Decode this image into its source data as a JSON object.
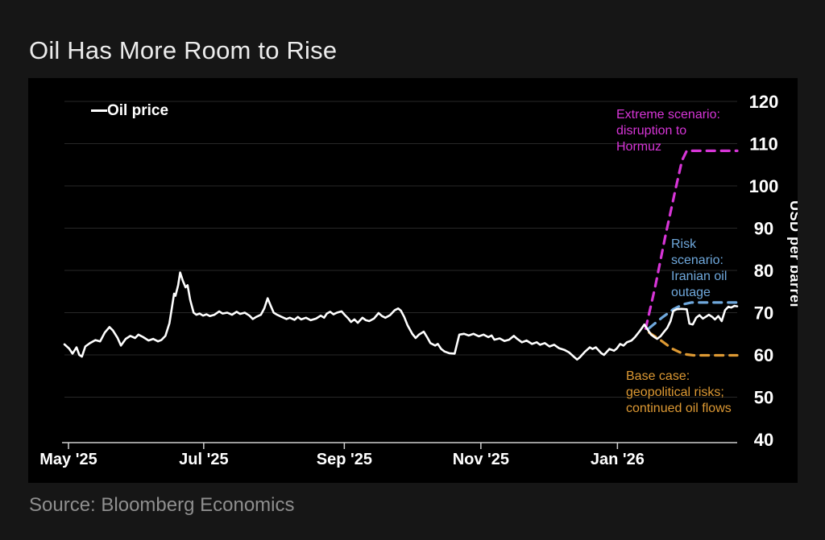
{
  "title": "Oil Has More Room to Rise",
  "source": "Source: Bloomberg Economics",
  "legend": {
    "label": "Oil price",
    "swatch_color": "#ffffff"
  },
  "annotations": {
    "extreme": {
      "text": "Extreme scenario:\ndisruption to\nHormuz",
      "color": "#d735d7"
    },
    "risk": {
      "text": "Risk\nscenario:\nIranian oil\noutage",
      "color": "#6fa8dc"
    },
    "base": {
      "text": "Base case:\ngeopolitical risks;\ncontinued oil flows",
      "color": "#dd9933"
    }
  },
  "chart_data": {
    "type": "line",
    "title": "Oil Has More Room to Rise",
    "xlabel": "",
    "ylabel": "USD per barrel",
    "ylim": [
      40,
      120
    ],
    "yticks": [
      40,
      50,
      60,
      70,
      80,
      90,
      100,
      110,
      120
    ],
    "grid": "horizontal faint, dark gray",
    "legend_position": "top-left",
    "xticks": [
      {
        "label": "May '25",
        "t": 0.006
      },
      {
        "label": "Jul '25",
        "t": 0.207
      },
      {
        "label": "Sep '25",
        "t": 0.416
      },
      {
        "label": "Nov '25",
        "t": 0.619
      },
      {
        "label": "Jan '26",
        "t": 0.822
      }
    ],
    "series": [
      {
        "name": "Oil price",
        "color": "#ffffff",
        "points": [
          [
            0.0,
            62.5
          ],
          [
            0.007,
            61.5
          ],
          [
            0.012,
            60.3
          ],
          [
            0.018,
            61.8
          ],
          [
            0.022,
            60.0
          ],
          [
            0.026,
            59.6
          ],
          [
            0.031,
            62.0
          ],
          [
            0.038,
            62.8
          ],
          [
            0.046,
            63.5
          ],
          [
            0.053,
            63.2
          ],
          [
            0.06,
            65.3
          ],
          [
            0.067,
            66.6
          ],
          [
            0.072,
            65.8
          ],
          [
            0.079,
            64.0
          ],
          [
            0.084,
            62.2
          ],
          [
            0.091,
            63.8
          ],
          [
            0.098,
            64.5
          ],
          [
            0.105,
            64.0
          ],
          [
            0.11,
            64.8
          ],
          [
            0.117,
            64.2
          ],
          [
            0.125,
            63.4
          ],
          [
            0.132,
            63.8
          ],
          [
            0.139,
            63.2
          ],
          [
            0.144,
            63.5
          ],
          [
            0.15,
            64.5
          ],
          [
            0.156,
            67.5
          ],
          [
            0.159,
            70.5
          ],
          [
            0.163,
            74.5
          ],
          [
            0.165,
            74.0
          ],
          [
            0.169,
            76.5
          ],
          [
            0.172,
            79.5
          ],
          [
            0.176,
            77.5
          ],
          [
            0.18,
            76.0
          ],
          [
            0.183,
            76.5
          ],
          [
            0.187,
            73.0
          ],
          [
            0.192,
            70.0
          ],
          [
            0.196,
            69.5
          ],
          [
            0.201,
            69.8
          ],
          [
            0.206,
            69.3
          ],
          [
            0.211,
            69.6
          ],
          [
            0.216,
            69.2
          ],
          [
            0.223,
            69.5
          ],
          [
            0.23,
            70.3
          ],
          [
            0.235,
            69.8
          ],
          [
            0.242,
            70.0
          ],
          [
            0.249,
            69.5
          ],
          [
            0.256,
            70.2
          ],
          [
            0.261,
            69.7
          ],
          [
            0.268,
            70.0
          ],
          [
            0.275,
            69.3
          ],
          [
            0.28,
            68.5
          ],
          [
            0.285,
            69.0
          ],
          [
            0.292,
            69.5
          ],
          [
            0.297,
            71.0
          ],
          [
            0.302,
            73.4
          ],
          [
            0.307,
            71.5
          ],
          [
            0.311,
            70.0
          ],
          [
            0.316,
            69.5
          ],
          [
            0.323,
            69.0
          ],
          [
            0.33,
            68.5
          ],
          [
            0.335,
            68.8
          ],
          [
            0.342,
            68.3
          ],
          [
            0.347,
            69.0
          ],
          [
            0.352,
            68.4
          ],
          [
            0.359,
            68.8
          ],
          [
            0.366,
            68.2
          ],
          [
            0.374,
            68.6
          ],
          [
            0.381,
            69.3
          ],
          [
            0.386,
            68.8
          ],
          [
            0.39,
            69.8
          ],
          [
            0.395,
            70.2
          ],
          [
            0.4,
            69.6
          ],
          [
            0.405,
            70.0
          ],
          [
            0.412,
            70.3
          ],
          [
            0.417,
            69.4
          ],
          [
            0.422,
            68.6
          ],
          [
            0.426,
            67.8
          ],
          [
            0.431,
            68.4
          ],
          [
            0.436,
            67.6
          ],
          [
            0.443,
            68.8
          ],
          [
            0.448,
            68.2
          ],
          [
            0.453,
            68.0
          ],
          [
            0.46,
            68.6
          ],
          [
            0.467,
            69.9
          ],
          [
            0.472,
            69.2
          ],
          [
            0.477,
            68.8
          ],
          [
            0.484,
            69.4
          ],
          [
            0.491,
            70.6
          ],
          [
            0.496,
            71.0
          ],
          [
            0.5,
            70.5
          ],
          [
            0.505,
            69.0
          ],
          [
            0.51,
            67.0
          ],
          [
            0.517,
            65.0
          ],
          [
            0.522,
            64.0
          ],
          [
            0.527,
            64.8
          ],
          [
            0.534,
            65.5
          ],
          [
            0.539,
            64.2
          ],
          [
            0.544,
            62.8
          ],
          [
            0.551,
            62.2
          ],
          [
            0.555,
            62.6
          ],
          [
            0.56,
            61.4
          ],
          [
            0.565,
            60.8
          ],
          [
            0.572,
            60.4
          ],
          [
            0.58,
            60.3
          ],
          [
            0.587,
            64.8
          ],
          [
            0.594,
            65.0
          ],
          [
            0.601,
            64.6
          ],
          [
            0.608,
            65.0
          ],
          [
            0.616,
            64.4
          ],
          [
            0.623,
            64.8
          ],
          [
            0.63,
            64.2
          ],
          [
            0.635,
            64.6
          ],
          [
            0.639,
            63.6
          ],
          [
            0.647,
            63.9
          ],
          [
            0.654,
            63.3
          ],
          [
            0.661,
            63.6
          ],
          [
            0.668,
            64.5
          ],
          [
            0.673,
            63.8
          ],
          [
            0.68,
            63.0
          ],
          [
            0.687,
            63.4
          ],
          [
            0.695,
            62.6
          ],
          [
            0.702,
            63.0
          ],
          [
            0.707,
            62.4
          ],
          [
            0.714,
            62.8
          ],
          [
            0.721,
            62.0
          ],
          [
            0.728,
            62.4
          ],
          [
            0.735,
            61.6
          ],
          [
            0.743,
            61.2
          ],
          [
            0.75,
            60.6
          ],
          [
            0.757,
            59.6
          ],
          [
            0.762,
            58.9
          ],
          [
            0.766,
            59.4
          ],
          [
            0.774,
            60.8
          ],
          [
            0.781,
            61.8
          ],
          [
            0.785,
            61.4
          ],
          [
            0.79,
            61.8
          ],
          [
            0.798,
            60.4
          ],
          [
            0.802,
            60.0
          ],
          [
            0.81,
            61.4
          ],
          [
            0.817,
            61.0
          ],
          [
            0.821,
            61.5
          ],
          [
            0.826,
            62.6
          ],
          [
            0.831,
            62.2
          ],
          [
            0.836,
            63.0
          ],
          [
            0.843,
            63.4
          ],
          [
            0.848,
            64.2
          ],
          [
            0.855,
            65.6
          ],
          [
            0.862,
            67.2
          ],
          [
            0.867,
            66.0
          ],
          [
            0.872,
            64.8
          ],
          [
            0.877,
            64.2
          ],
          [
            0.881,
            63.8
          ],
          [
            0.886,
            64.4
          ],
          [
            0.891,
            65.4
          ],
          [
            0.896,
            66.4
          ],
          [
            0.901,
            68.0
          ],
          [
            0.905,
            70.4
          ],
          [
            0.91,
            70.8
          ],
          [
            0.917,
            70.9
          ],
          [
            0.925,
            70.8
          ],
          [
            0.929,
            67.4
          ],
          [
            0.934,
            67.2
          ],
          [
            0.939,
            68.8
          ],
          [
            0.944,
            69.4
          ],
          [
            0.949,
            68.6
          ],
          [
            0.953,
            69.0
          ],
          [
            0.958,
            69.5
          ],
          [
            0.963,
            69.0
          ],
          [
            0.967,
            68.4
          ],
          [
            0.972,
            69.2
          ],
          [
            0.977,
            68.0
          ],
          [
            0.982,
            70.6
          ],
          [
            0.987,
            71.4
          ],
          [
            0.991,
            71.2
          ],
          [
            0.996,
            71.6
          ],
          [
            1.0,
            71.5
          ]
        ]
      }
    ],
    "scenarios": [
      {
        "name": "Extreme scenario: disruption to Hormuz",
        "color": "#d735d7",
        "level": 108.3,
        "points": [
          [
            0.864,
            66.2
          ],
          [
            0.878,
            76
          ],
          [
            0.893,
            88
          ],
          [
            0.908,
            99
          ],
          [
            0.918,
            106
          ],
          [
            0.925,
            108.3
          ],
          [
            1.0,
            108.3
          ]
        ]
      },
      {
        "name": "Risk scenario: Iranian oil outage",
        "color": "#6fa8dc",
        "level": 72.4,
        "points": [
          [
            0.869,
            66.3
          ],
          [
            0.888,
            68.8
          ],
          [
            0.905,
            70.8
          ],
          [
            0.92,
            72.0
          ],
          [
            0.932,
            72.4
          ],
          [
            1.0,
            72.4
          ]
        ]
      },
      {
        "name": "Base case: geopolitical risks; continued oil flows",
        "color": "#dd9933",
        "level": 59.9,
        "points": [
          [
            0.869,
            65.3
          ],
          [
            0.886,
            63.5
          ],
          [
            0.903,
            61.5
          ],
          [
            0.92,
            60.2
          ],
          [
            0.935,
            59.9
          ],
          [
            1.0,
            59.9
          ]
        ]
      }
    ],
    "colors": {
      "grid": "#282828",
      "axis": "#d0d0d0",
      "tick_text": "#ffffff",
      "background": "#000000"
    }
  }
}
